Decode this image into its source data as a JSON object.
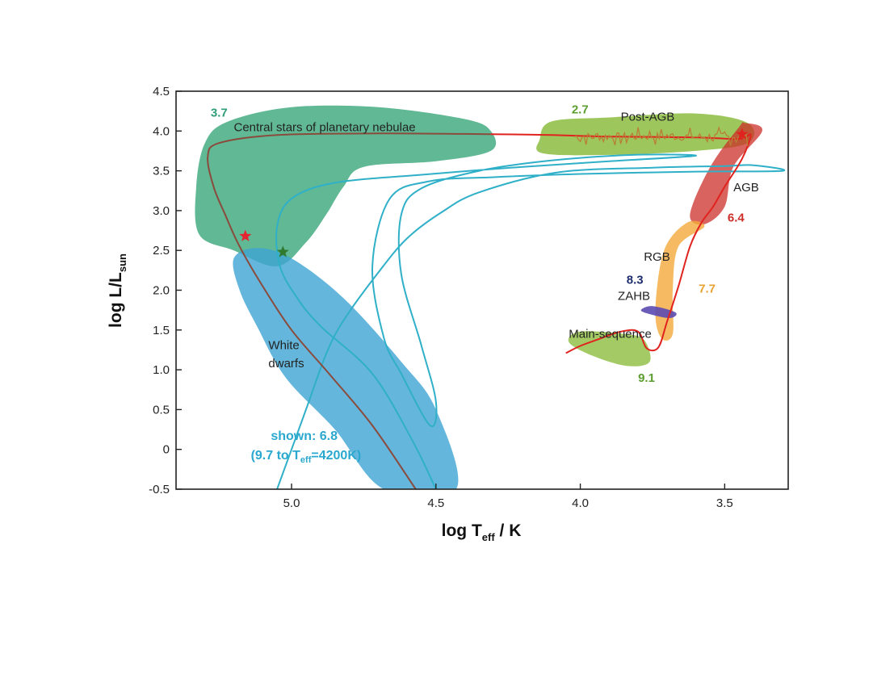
{
  "chart_data": {
    "type": "line",
    "title": "",
    "xlabel_main": "log T",
    "xlabel_sub": "eff",
    "xlabel_tail": " / K",
    "ylabel_main": "log L/L",
    "ylabel_sub": "sun",
    "xlim": [
      5.4,
      3.28
    ],
    "ylim": [
      -0.5,
      4.5
    ],
    "x_reversed": true,
    "grid": false,
    "x_ticks": [
      {
        "value": 5.0,
        "label": "5.0"
      },
      {
        "value": 4.5,
        "label": "4.5"
      },
      {
        "value": 4.0,
        "label": "4.0"
      },
      {
        "value": 3.5,
        "label": "3.5"
      }
    ],
    "y_ticks": [
      {
        "value": 4.5,
        "label": "4.5"
      },
      {
        "value": 4.0,
        "label": "4.0"
      },
      {
        "value": 3.5,
        "label": "3.5"
      },
      {
        "value": 3.0,
        "label": "3.0"
      },
      {
        "value": 2.5,
        "label": "2.5"
      },
      {
        "value": 2.0,
        "label": "2.0"
      },
      {
        "value": 1.5,
        "label": "1.5"
      },
      {
        "value": 1.0,
        "label": "1.0"
      },
      {
        "value": 0.5,
        "label": "0.5"
      },
      {
        "value": 0,
        "label": "0"
      },
      {
        "value": -0.5,
        "label": "-0.5"
      }
    ],
    "regions": [
      {
        "name": "Central stars of planetary nebulae",
        "color": "#3aa67a",
        "opacity": 0.8,
        "outline": [
          [
            5.3,
            3.85
          ],
          [
            5.22,
            4.12
          ],
          [
            5.0,
            4.3
          ],
          [
            4.7,
            4.3
          ],
          [
            4.4,
            4.15
          ],
          [
            4.31,
            4.0
          ],
          [
            4.31,
            3.75
          ],
          [
            4.5,
            3.62
          ],
          [
            4.75,
            3.55
          ],
          [
            4.82,
            3.3
          ],
          [
            4.88,
            2.95
          ],
          [
            4.95,
            2.6
          ],
          [
            5.05,
            2.3
          ],
          [
            5.2,
            2.5
          ],
          [
            5.32,
            2.7
          ],
          [
            5.33,
            3.3
          ]
        ]
      },
      {
        "name": "Post-AGB",
        "color": "#8cbd3f",
        "opacity": 0.85,
        "outline": [
          [
            4.14,
            3.9
          ],
          [
            4.1,
            4.12
          ],
          [
            3.9,
            4.17
          ],
          [
            3.6,
            4.22
          ],
          [
            3.42,
            4.1
          ],
          [
            3.42,
            3.85
          ],
          [
            3.6,
            3.75
          ],
          [
            3.9,
            3.7
          ],
          [
            4.13,
            3.72
          ]
        ]
      },
      {
        "name": "AGB",
        "color": "#cc2f2a",
        "opacity": 0.75,
        "outline": [
          [
            3.43,
            4.1
          ],
          [
            3.37,
            4.0
          ],
          [
            3.47,
            3.55
          ],
          [
            3.5,
            3.05
          ],
          [
            3.57,
            2.83
          ],
          [
            3.62,
            2.95
          ],
          [
            3.55,
            3.55
          ],
          [
            3.45,
            4.05
          ]
        ]
      },
      {
        "name": "RGB",
        "color": "#f2a93b",
        "opacity": 0.8,
        "outline": [
          [
            3.57,
            2.8
          ],
          [
            3.66,
            2.55
          ],
          [
            3.68,
            2.0
          ],
          [
            3.68,
            1.45
          ],
          [
            3.72,
            1.4
          ],
          [
            3.74,
            1.75
          ],
          [
            3.71,
            2.5
          ],
          [
            3.63,
            2.85
          ]
        ]
      },
      {
        "name": "ZAHB",
        "color": "#5b4ab3",
        "opacity": 0.9,
        "outline": [
          [
            3.79,
            1.75
          ],
          [
            3.75,
            1.8
          ],
          [
            3.67,
            1.72
          ],
          [
            3.69,
            1.65
          ],
          [
            3.76,
            1.7
          ]
        ]
      },
      {
        "name": "Main-sequence",
        "color": "#8cbd3f",
        "opacity": 0.8,
        "outline": [
          [
            4.04,
            1.35
          ],
          [
            4.0,
            1.48
          ],
          [
            3.85,
            1.45
          ],
          [
            3.78,
            1.38
          ],
          [
            3.76,
            1.1
          ],
          [
            3.84,
            1.05
          ],
          [
            3.96,
            1.18
          ]
        ]
      },
      {
        "name": "White dwarfs",
        "color": "#3ea4d3",
        "opacity": 0.8,
        "outline": [
          [
            5.2,
            2.4
          ],
          [
            5.12,
            2.53
          ],
          [
            5.0,
            2.4
          ],
          [
            4.82,
            1.9
          ],
          [
            4.62,
            1.1
          ],
          [
            4.5,
            0.5
          ],
          [
            4.43,
            -0.5
          ],
          [
            4.68,
            -0.5
          ],
          [
            4.85,
            0.25
          ],
          [
            5.02,
            0.9
          ],
          [
            5.12,
            1.55
          ],
          [
            5.18,
            2.0
          ]
        ]
      }
    ],
    "series": [
      {
        "color": "#2fb0c8",
        "points": [
          [
            5.05,
            -0.5
          ],
          [
            4.95,
            0.5
          ],
          [
            4.88,
            1.2
          ],
          [
            4.82,
            1.62
          ],
          [
            4.7,
            2.22
          ],
          [
            4.6,
            2.65
          ],
          [
            4.48,
            2.98
          ],
          [
            4.35,
            3.23
          ],
          [
            4.08,
            3.48
          ],
          [
            3.75,
            3.54
          ],
          [
            3.5,
            3.56
          ],
          [
            3.4,
            3.57
          ],
          [
            3.3,
            3.5
          ],
          [
            3.6,
            3.49
          ],
          [
            4.0,
            3.46
          ],
          [
            4.3,
            3.42
          ],
          [
            4.52,
            3.37
          ],
          [
            4.66,
            3.15
          ],
          [
            4.72,
            2.3
          ],
          [
            4.68,
            1.4
          ],
          [
            4.62,
            0.95
          ],
          [
            4.52,
            0.3
          ],
          [
            4.5,
            0.6
          ],
          [
            4.55,
            1.3
          ],
          [
            4.62,
            2.2
          ],
          [
            4.62,
            2.95
          ],
          [
            4.55,
            3.28
          ],
          [
            4.35,
            3.5
          ],
          [
            4.1,
            3.63
          ],
          [
            3.82,
            3.7
          ],
          [
            3.6,
            3.69
          ],
          [
            3.9,
            3.62
          ],
          [
            4.2,
            3.55
          ],
          [
            4.55,
            3.45
          ],
          [
            4.85,
            3.35
          ],
          [
            5.0,
            3.15
          ],
          [
            5.05,
            2.8
          ],
          [
            5.04,
            2.3
          ],
          [
            4.98,
            1.9
          ],
          [
            4.9,
            1.55
          ],
          [
            4.72,
            0.95
          ],
          [
            4.58,
            0.1
          ],
          [
            4.5,
            -0.5
          ]
        ]
      },
      {
        "color": "#8a4b3c",
        "points": [
          [
            4.57,
            -0.5
          ],
          [
            4.72,
            0.3
          ],
          [
            4.87,
            0.95
          ],
          [
            5.0,
            1.5
          ],
          [
            5.1,
            2.05
          ],
          [
            5.18,
            2.55
          ],
          [
            5.23,
            2.95
          ],
          [
            5.27,
            3.3
          ],
          [
            5.29,
            3.68
          ],
          [
            5.25,
            3.85
          ],
          [
            5.05,
            3.95
          ],
          [
            4.7,
            3.97
          ],
          [
            4.31,
            3.96
          ]
        ]
      },
      {
        "color": "#e0231f",
        "points": [
          [
            4.31,
            3.96
          ],
          [
            4.1,
            3.95
          ],
          [
            3.9,
            3.93
          ],
          [
            3.6,
            3.92
          ],
          [
            3.45,
            3.9
          ],
          [
            3.41,
            3.95
          ],
          [
            3.44,
            3.65
          ],
          [
            3.5,
            3.3
          ],
          [
            3.54,
            3.05
          ],
          [
            3.58,
            2.85
          ],
          [
            3.62,
            2.55
          ],
          [
            3.66,
            2.05
          ],
          [
            3.7,
            1.6
          ],
          [
            3.73,
            1.28
          ],
          [
            3.77,
            1.27
          ],
          [
            3.8,
            1.48
          ],
          [
            3.86,
            1.48
          ],
          [
            3.94,
            1.38
          ],
          [
            4.0,
            1.3
          ],
          [
            4.05,
            1.21
          ]
        ]
      }
    ],
    "noise_trace": {
      "color": "#b87f36",
      "x_range": [
        4.02,
        3.42
      ],
      "y": 3.93
    },
    "markers": [
      {
        "x": 5.16,
        "y": 2.68,
        "color": "#e3262f",
        "shape": "star"
      },
      {
        "x": 5.03,
        "y": 2.48,
        "color": "#2f7a2f",
        "shape": "star"
      },
      {
        "x": 3.44,
        "y": 3.96,
        "color": "#e0231f",
        "shape": "star"
      }
    ],
    "annotations": [
      {
        "text": "Central stars of planetary nebulae",
        "x": 5.2,
        "y": 4.0,
        "color": "#222222",
        "style": "region"
      },
      {
        "text": "Post-AGB",
        "x": 3.86,
        "y": 4.13,
        "color": "#222222",
        "style": "region"
      },
      {
        "text": "AGB",
        "x": 3.47,
        "y": 3.24,
        "color": "#222222",
        "style": "region"
      },
      {
        "text": "RGB",
        "x": 3.78,
        "y": 2.37,
        "color": "#222222",
        "style": "region"
      },
      {
        "text": "ZAHB",
        "x": 3.87,
        "y": 1.88,
        "color": "#222222",
        "style": "region"
      },
      {
        "text": "Main-sequence",
        "x": 4.04,
        "y": 1.4,
        "color": "#222222",
        "style": "region"
      },
      {
        "text": "White",
        "x": 5.08,
        "y": 1.26,
        "color": "#222222",
        "style": "region"
      },
      {
        "text": "dwarfs",
        "x": 5.08,
        "y": 1.03,
        "color": "#222222",
        "style": "region"
      },
      {
        "text": "3.7",
        "x": 5.28,
        "y": 4.18,
        "color": "#2e9c77",
        "style": "age"
      },
      {
        "text": "2.7",
        "x": 4.03,
        "y": 4.22,
        "color": "#5b9e2f",
        "style": "age"
      },
      {
        "text": "6.4",
        "x": 3.49,
        "y": 2.86,
        "color": "#cc2f2a",
        "style": "age"
      },
      {
        "text": "7.7",
        "x": 3.59,
        "y": 1.97,
        "color": "#e8a232",
        "style": "age"
      },
      {
        "text": "8.3",
        "x": 3.84,
        "y": 2.08,
        "color": "#1f2e6e",
        "style": "age"
      },
      {
        "text": "9.1",
        "x": 3.8,
        "y": 0.85,
        "color": "#5b9e2f",
        "style": "age"
      }
    ],
    "shown_label": {
      "line1": "shown: 6.8",
      "line2_pre": "(9.7 to T",
      "line2_sub": "eff",
      "line2_post": "=4200K)",
      "x": 4.95,
      "y": 0.12,
      "color": "#2aa8cf"
    }
  }
}
